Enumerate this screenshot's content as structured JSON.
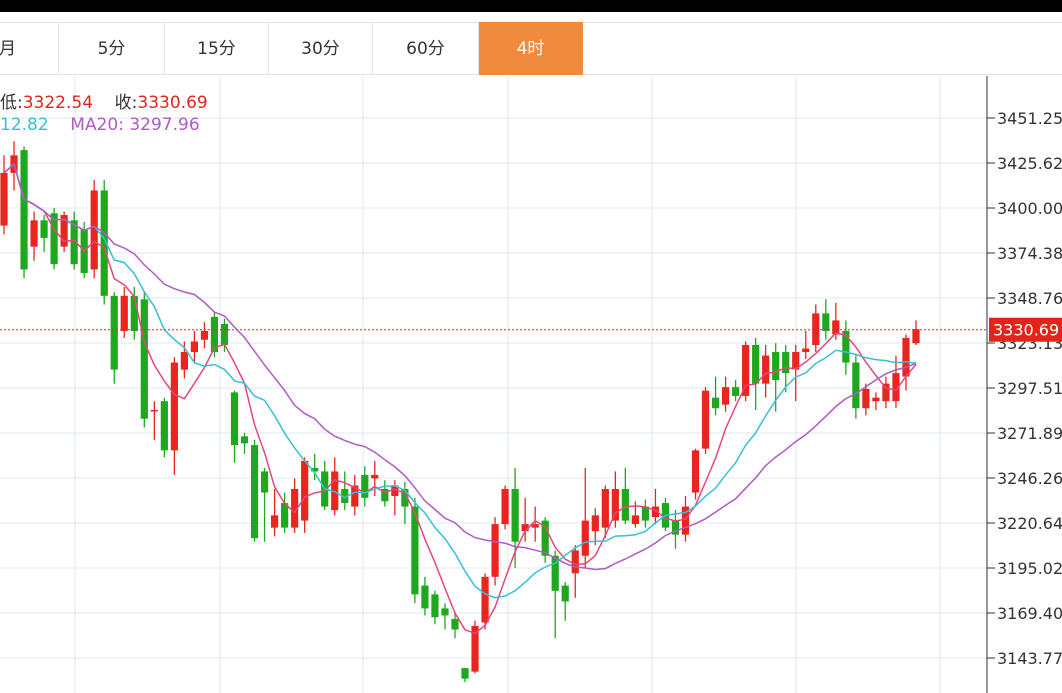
{
  "tabs": [
    {
      "label": "月",
      "active": false
    },
    {
      "label": "5分",
      "active": false
    },
    {
      "label": "15分",
      "active": false
    },
    {
      "label": "30分",
      "active": false
    },
    {
      "label": "60分",
      "active": false
    },
    {
      "label": "4时",
      "active": true
    }
  ],
  "info": {
    "low_label": "低:",
    "low_value": "3322.54",
    "close_label": "收:",
    "close_value": "3330.69",
    "ma_partial_value": "12.82",
    "ma20_label": "MA20:",
    "ma20_value": "3297.96"
  },
  "colors": {
    "up": "#e8261f",
    "down": "#1fa81f",
    "ma_fast": "#e8457a",
    "ma_mid": "#36c0d6",
    "ma_slow": "#b05ac4",
    "active_tab": "#f08a3c",
    "price_line": "#e0261b"
  },
  "chart_data": {
    "type": "candlestick",
    "y_ticks": [
      "3451.25",
      "3425.62",
      "3400.00",
      "3374.38",
      "3348.76",
      "3323.13",
      "3297.51",
      "3271.89",
      "3246.26",
      "3220.64",
      "3195.02",
      "3169.40",
      "3143.77"
    ],
    "ylim": [
      3130,
      3470
    ],
    "current_price": 3330.69,
    "current_price_label": "3330.69",
    "candles": [
      [
        3390,
        3420,
        3385,
        3430
      ],
      [
        3420,
        3430,
        3410,
        3438
      ],
      [
        3433,
        3365,
        3360,
        3435
      ],
      [
        3378,
        3393,
        3370,
        3398
      ],
      [
        3393,
        3383,
        3375,
        3396
      ],
      [
        3397,
        3368,
        3365,
        3400
      ],
      [
        3378,
        3396,
        3375,
        3398
      ],
      [
        3393,
        3368,
        3365,
        3398
      ],
      [
        3388,
        3363,
        3360,
        3392
      ],
      [
        3365,
        3410,
        3360,
        3416
      ],
      [
        3410,
        3350,
        3345,
        3416
      ],
      [
        3350,
        3308,
        3300,
        3352
      ],
      [
        3330,
        3350,
        3326,
        3355
      ],
      [
        3350,
        3330,
        3325,
        3355
      ],
      [
        3348,
        3280,
        3275,
        3352
      ],
      [
        3285,
        3285,
        3268,
        3290
      ],
      [
        3290,
        3262,
        3258,
        3292
      ],
      [
        3262,
        3312,
        3248,
        3315
      ],
      [
        3308,
        3318,
        3303,
        3324
      ],
      [
        3318,
        3324,
        3312,
        3330
      ],
      [
        3325,
        3330,
        3320,
        3335
      ],
      [
        3338,
        3318,
        3315,
        3341
      ],
      [
        3334,
        3322,
        3318,
        3337
      ],
      [
        3295,
        3265,
        3255,
        3296
      ],
      [
        3270,
        3266,
        3260,
        3272
      ],
      [
        3265,
        3212,
        3210,
        3268
      ],
      [
        3250,
        3238,
        3210,
        3252
      ],
      [
        3218,
        3225,
        3213,
        3240
      ],
      [
        3232,
        3218,
        3215,
        3238
      ],
      [
        3218,
        3240,
        3215,
        3246
      ],
      [
        3222,
        3256,
        3215,
        3258
      ],
      [
        3252,
        3250,
        3245,
        3260
      ],
      [
        3250,
        3230,
        3228,
        3256
      ],
      [
        3228,
        3250,
        3225,
        3258
      ],
      [
        3240,
        3232,
        3228,
        3250
      ],
      [
        3230,
        3242,
        3225,
        3248
      ],
      [
        3248,
        3235,
        3230,
        3253
      ],
      [
        3246,
        3248,
        3236,
        3256
      ],
      [
        3240,
        3233,
        3230,
        3245
      ],
      [
        3236,
        3242,
        3225,
        3245
      ],
      [
        3240,
        3230,
        3220,
        3244
      ],
      [
        3230,
        3180,
        3175,
        3235
      ],
      [
        3185,
        3172,
        3168,
        3190
      ],
      [
        3180,
        3167,
        3163,
        3182
      ],
      [
        3172,
        3168,
        3160,
        3175
      ],
      [
        3166,
        3160,
        3155,
        3170
      ],
      [
        3138,
        3132,
        3130,
        3138
      ],
      [
        3136,
        3162,
        3135,
        3165
      ],
      [
        3164,
        3190,
        3160,
        3192
      ],
      [
        3190,
        3220,
        3185,
        3224
      ],
      [
        3220,
        3240,
        3217,
        3242
      ],
      [
        3240,
        3210,
        3195,
        3252
      ],
      [
        3216,
        3220,
        3210,
        3235
      ],
      [
        3218,
        3220,
        3210,
        3230
      ],
      [
        3222,
        3202,
        3198,
        3224
      ],
      [
        3202,
        3182,
        3155,
        3205
      ],
      [
        3185,
        3176,
        3165,
        3187
      ],
      [
        3192,
        3205,
        3178,
        3208
      ],
      [
        3202,
        3222,
        3195,
        3252
      ],
      [
        3216,
        3225,
        3208,
        3229
      ],
      [
        3218,
        3240,
        3212,
        3242
      ],
      [
        3222,
        3240,
        3218,
        3250
      ],
      [
        3240,
        3222,
        3220,
        3252
      ],
      [
        3220,
        3225,
        3218,
        3233
      ],
      [
        3230,
        3222,
        3218,
        3234
      ],
      [
        3224,
        3230,
        3220,
        3240
      ],
      [
        3232,
        3218,
        3216,
        3235
      ],
      [
        3222,
        3214,
        3206,
        3228
      ],
      [
        3214,
        3230,
        3210,
        3236
      ],
      [
        3238,
        3262,
        3234,
        3263
      ],
      [
        3263,
        3296,
        3260,
        3298
      ],
      [
        3292,
        3286,
        3282,
        3304
      ],
      [
        3288,
        3298,
        3284,
        3304
      ],
      [
        3298,
        3293,
        3290,
        3302
      ],
      [
        3293,
        3322,
        3290,
        3324
      ],
      [
        3322,
        3300,
        3285,
        3326
      ],
      [
        3300,
        3316,
        3292,
        3322
      ],
      [
        3318,
        3302,
        3284,
        3323
      ],
      [
        3318,
        3306,
        3295,
        3322
      ],
      [
        3308,
        3318,
        3290,
        3322
      ],
      [
        3318,
        3320,
        3314,
        3330
      ],
      [
        3322,
        3340,
        3318,
        3345
      ],
      [
        3340,
        3330,
        3325,
        3348
      ],
      [
        3328,
        3336,
        3325,
        3346
      ],
      [
        3330,
        3312,
        3305,
        3336
      ],
      [
        3312,
        3286,
        3280,
        3316
      ],
      [
        3286,
        3297,
        3282,
        3300
      ],
      [
        3290,
        3292,
        3285,
        3295
      ],
      [
        3290,
        3300,
        3286,
        3304
      ],
      [
        3290,
        3306,
        3286,
        3316
      ],
      [
        3304,
        3326,
        3296,
        3328
      ],
      [
        3323,
        3331,
        3322,
        3336
      ]
    ]
  }
}
